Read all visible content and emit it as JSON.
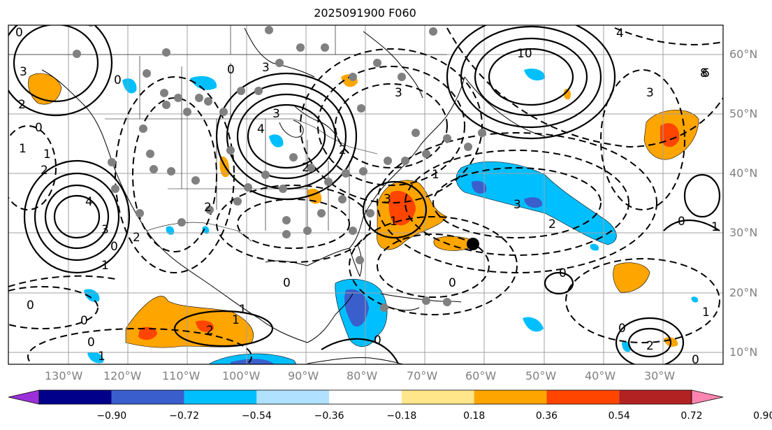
{
  "title": "2025091900 F060",
  "lon_labels": [
    "130°W",
    "120°W",
    "110°W",
    "100°W",
    "90°W",
    "80°W",
    "70°W",
    "60°W",
    "50°W",
    "40°W",
    "30°W"
  ],
  "lat_labels": [
    "60°N",
    "50°N",
    "40°N",
    "30°N",
    "20°N",
    "10°N"
  ],
  "colorbar": {
    "colors": [
      "#9b30d9",
      "#00008b",
      "#3a5fcd",
      "#00bfff",
      "#b0e2ff",
      "#ffffff",
      "#ffe68a",
      "#ffa500",
      "#ff4500",
      "#b22222",
      "#ff85b0"
    ],
    "ticks": [
      "−0.90",
      "−0.72",
      "−0.54",
      "−0.36",
      "−0.18",
      "0.18",
      "0.36",
      "0.54",
      "0.72",
      "0.90"
    ]
  },
  "contour_labels": [
    "0",
    "3",
    "2",
    "1",
    "0",
    "0",
    "0",
    "4",
    "3",
    "0",
    "2",
    "3",
    "0",
    "4",
    "3",
    "2",
    "3",
    "1",
    "1",
    "0",
    "0",
    "10",
    "8",
    "6",
    "3",
    "2",
    "0",
    "4",
    "1",
    "3",
    "2",
    "1",
    "0",
    "2",
    "0",
    "1",
    "0",
    "0",
    "2",
    "1",
    "1",
    "3",
    "2",
    "1",
    "0",
    "2",
    "1",
    "0"
  ],
  "colors": {
    "orange": "#ffa500",
    "red": "#ff4500",
    "cyan": "#00bfff",
    "blue": "#3a5fcd",
    "dots": "#808080"
  }
}
